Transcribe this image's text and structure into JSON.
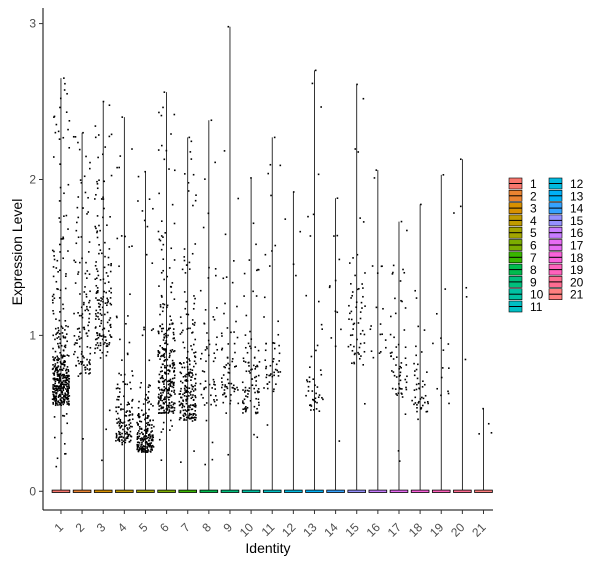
{
  "chart_data": {
    "type": "scatter",
    "subtype": "violin-jitter",
    "title": "",
    "xlabel": "Identity",
    "ylabel": "Expression Level",
    "ylim": [
      -0.12,
      3.1
    ],
    "yticks": [
      0,
      1,
      2,
      3
    ],
    "grid": false,
    "legend_position": "right",
    "categories": [
      "1",
      "2",
      "3",
      "4",
      "5",
      "6",
      "7",
      "8",
      "9",
      "10",
      "11",
      "12",
      "13",
      "14",
      "15",
      "16",
      "17",
      "18",
      "19",
      "20",
      "21"
    ],
    "colors": [
      "#F8766D",
      "#EA8331",
      "#D89000",
      "#C09B00",
      "#A3A500",
      "#7CAE00",
      "#39B600",
      "#00BB4E",
      "#00BF7D",
      "#00C1A3",
      "#00BFC4",
      "#00BAE0",
      "#00B0F6",
      "#35A2FF",
      "#9590FF",
      "#C77CFF",
      "#E76BF3",
      "#FA62DB",
      "#FF62BC",
      "#FF6C91",
      "#FF7F7F"
    ],
    "groups": [
      {
        "category": "1",
        "max": 2.65,
        "n_expressing": 420,
        "center": 0.55,
        "spread": 0.35
      },
      {
        "category": "2",
        "max": 2.3,
        "n_expressing": 120,
        "center": 0.75,
        "spread": 0.7
      },
      {
        "category": "3",
        "max": 2.5,
        "n_expressing": 160,
        "center": 0.85,
        "spread": 0.75
      },
      {
        "category": "4",
        "max": 2.4,
        "n_expressing": 140,
        "center": 0.3,
        "spread": 0.3
      },
      {
        "category": "5",
        "max": 2.05,
        "n_expressing": 210,
        "center": 0.25,
        "spread": 0.2
      },
      {
        "category": "6",
        "max": 2.56,
        "n_expressing": 300,
        "center": 0.5,
        "spread": 0.45
      },
      {
        "category": "7",
        "max": 2.27,
        "n_expressing": 220,
        "center": 0.45,
        "spread": 0.4
      },
      {
        "category": "8",
        "max": 2.38,
        "n_expressing": 60,
        "center": 0.55,
        "spread": 0.5
      },
      {
        "category": "9",
        "max": 2.98,
        "n_expressing": 70,
        "center": 0.55,
        "spread": 0.4
      },
      {
        "category": "10",
        "max": 2.01,
        "n_expressing": 90,
        "center": 0.5,
        "spread": 0.35
      },
      {
        "category": "11",
        "max": 2.27,
        "n_expressing": 50,
        "center": 0.6,
        "spread": 0.45
      },
      {
        "category": "12",
        "max": 1.92,
        "n_expressing": 4,
        "center": 1.2,
        "spread": 0.6
      },
      {
        "category": "13",
        "max": 2.7,
        "n_expressing": 45,
        "center": 0.5,
        "spread": 0.4
      },
      {
        "category": "14",
        "max": 1.88,
        "n_expressing": 12,
        "center": 0.9,
        "spread": 0.6
      },
      {
        "category": "15",
        "max": 2.61,
        "n_expressing": 60,
        "center": 0.8,
        "spread": 0.6
      },
      {
        "category": "16",
        "max": 2.06,
        "n_expressing": 18,
        "center": 0.8,
        "spread": 0.6
      },
      {
        "category": "17",
        "max": 1.73,
        "n_expressing": 60,
        "center": 0.6,
        "spread": 0.35
      },
      {
        "category": "18",
        "max": 1.84,
        "n_expressing": 45,
        "center": 0.5,
        "spread": 0.3
      },
      {
        "category": "19",
        "max": 2.03,
        "n_expressing": 14,
        "center": 0.6,
        "spread": 0.5
      },
      {
        "category": "20",
        "max": 2.13,
        "n_expressing": 5,
        "center": 1.2,
        "spread": 0.6
      },
      {
        "category": "21",
        "max": 0.53,
        "n_expressing": 3,
        "center": 0.3,
        "spread": 0.2
      }
    ]
  }
}
